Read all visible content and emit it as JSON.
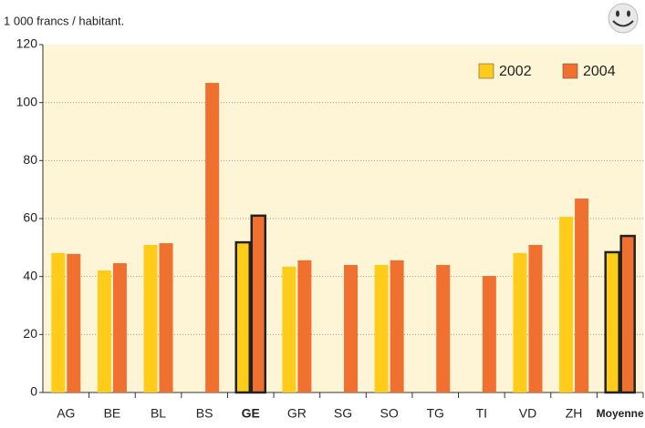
{
  "chart_data": {
    "type": "bar",
    "y_label": "1 000 francs / habitant.",
    "categories": [
      "AG",
      "BE",
      "BL",
      "BS",
      "GE",
      "GR",
      "SG",
      "SO",
      "TG",
      "TI",
      "VD",
      "ZH",
      "Moyenne"
    ],
    "series": [
      {
        "name": "2002",
        "color": "#ffcc1a",
        "values": [
          48.1,
          42.1,
          50.9,
          null,
          51.8,
          43.4,
          null,
          44,
          null,
          null,
          48.1,
          60.6,
          48.4
        ]
      },
      {
        "name": "2004",
        "color": "#f07030",
        "values": [
          47.8,
          44.6,
          51.5,
          106.8,
          61,
          45.6,
          44,
          45.6,
          44,
          40.2,
          50.9,
          66.9,
          54
        ]
      }
    ],
    "highlight_categories": [
      "GE",
      "Moyenne"
    ],
    "ylim": [
      0,
      120
    ],
    "yticks": [
      0,
      20,
      40,
      60,
      80,
      100,
      120
    ],
    "grid": true,
    "legend": "top-right"
  }
}
